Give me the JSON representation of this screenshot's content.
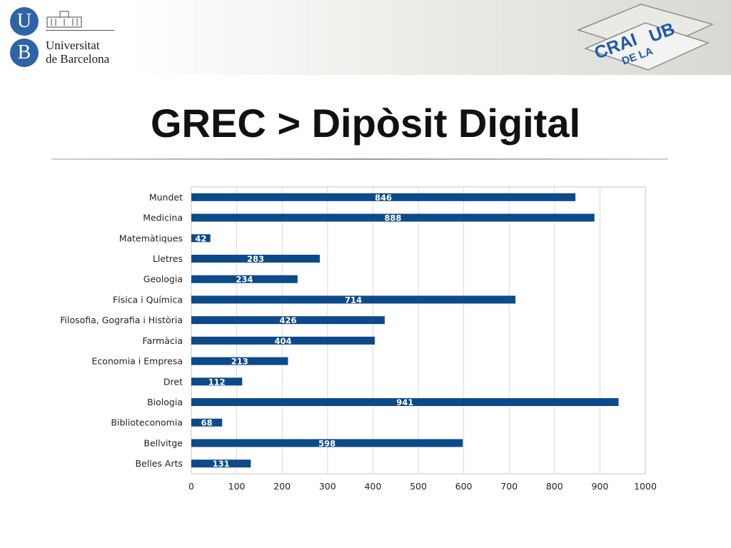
{
  "header": {
    "logo_letters": [
      "U",
      "B"
    ],
    "logo_name_lines": [
      "Universitat",
      "de Barcelona"
    ],
    "crai_logo_text": [
      "CRAI",
      "DE LA",
      "UB"
    ]
  },
  "slide": {
    "title": "GREC > Dipòsit Digital"
  },
  "colors": {
    "bar": "#0c4a8a",
    "ub_blue": "#2e63a7",
    "crai_blue": "#1e5aa8",
    "gridline": "#d9d9d9"
  },
  "chart_data": {
    "type": "bar",
    "orientation": "horizontal",
    "categories": [
      "Mundet",
      "Medicina",
      "Matemàtiques",
      "Lletres",
      "Geologia",
      "Física i Química",
      "Filosofia, Gografia i Història",
      "Farmàcia",
      "Economia i Empresa",
      "Dret",
      "Biologia",
      "Biblioteconomia",
      "Bellvitge",
      "Belles Arts"
    ],
    "values": [
      846,
      888,
      42,
      283,
      234,
      714,
      426,
      404,
      213,
      112,
      941,
      68,
      598,
      131
    ],
    "xlim": [
      0,
      1000
    ],
    "xticks": [
      0,
      100,
      200,
      300,
      400,
      500,
      600,
      700,
      800,
      900,
      1000
    ],
    "data_labels": true,
    "grid": "vertical",
    "legend": "none"
  }
}
